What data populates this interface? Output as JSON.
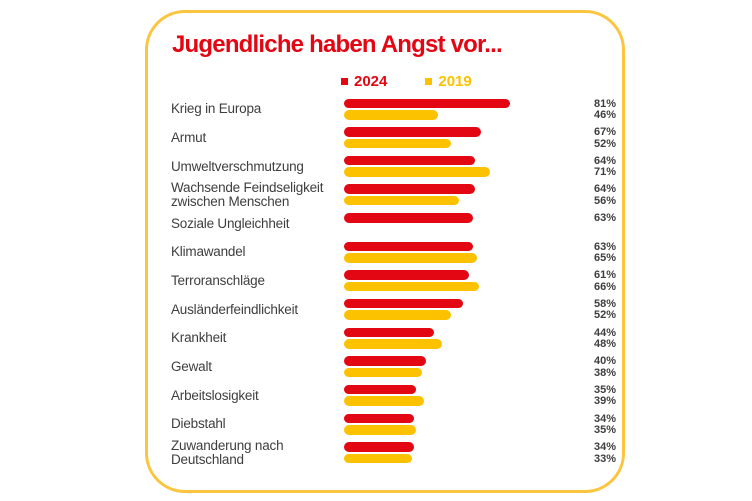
{
  "card": {
    "title": "Jugendliche haben Angst vor...",
    "colors": {
      "accent_red": "#e30613",
      "accent_yellow": "#fcc200",
      "border_yellow": "#fbc540",
      "text_gray": "#3e3e3e"
    }
  },
  "chart_data": {
    "type": "bar",
    "orientation": "horizontal",
    "title": "Jugendliche haben Angst vor...",
    "legend_position": "top",
    "value_suffix": "%",
    "xlim": [
      0,
      100
    ],
    "grid": false,
    "categories": [
      "Krieg in Europa",
      "Armut",
      "Umweltverschmutzung",
      "Wachsende Feindseligkeit\nzwischen Menschen",
      "Soziale Ungleichheit",
      "Klimawandel",
      "Terroranschläge",
      "Ausländerfeindlichkeit",
      "Krankheit",
      "Gewalt",
      "Arbeitslosigkeit",
      "Diebstahl",
      "Zuwanderung nach\nDeutschland"
    ],
    "series": [
      {
        "name": "2024",
        "color": "#e30613",
        "values": [
          81,
          67,
          64,
          64,
          63,
          63,
          61,
          58,
          44,
          40,
          35,
          34,
          34
        ]
      },
      {
        "name": "2019",
        "color": "#fcc200",
        "values": [
          46,
          52,
          71,
          56,
          null,
          65,
          66,
          52,
          48,
          38,
          39,
          35,
          33
        ]
      }
    ]
  }
}
